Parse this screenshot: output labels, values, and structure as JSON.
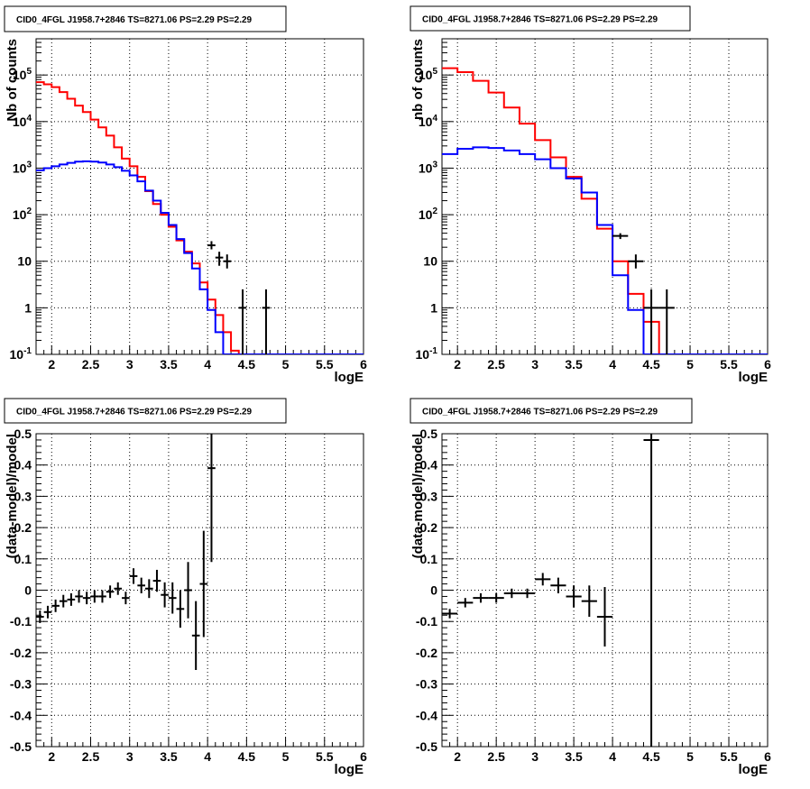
{
  "chart_data": [
    {
      "type": "line",
      "title": "CID0_4FGL J1958.7+2846 TS=8271.06 PS=2.29 PS=2.29",
      "xlabel": "logE",
      "ylabel": "Nb of counts",
      "xlim": [
        1.8,
        6.0
      ],
      "ylim": [
        0.1,
        600000
      ],
      "yscale": "log",
      "grid": true,
      "x_ticks": [
        "2",
        "2.5",
        "3",
        "3.5",
        "4",
        "4.5",
        "5",
        "5.5",
        "6"
      ],
      "y_ticks": [
        "10^-1",
        "1",
        "10",
        "10^2",
        "10^3",
        "10^4",
        "10^5"
      ],
      "bin_edges": [
        1.8,
        1.9,
        2.0,
        2.1,
        2.2,
        2.3,
        2.4,
        2.5,
        2.6,
        2.7,
        2.8,
        2.9,
        3.0,
        3.1,
        3.2,
        3.3,
        3.4,
        3.5,
        3.6,
        3.7,
        3.8,
        3.9,
        4.0,
        4.1,
        4.2,
        4.3,
        4.4,
        4.5,
        4.6,
        4.7,
        4.8,
        4.9,
        5.0,
        5.1,
        5.2,
        5.3,
        5.4,
        5.5,
        5.6,
        5.7,
        5.8,
        5.9,
        6.0
      ],
      "series": [
        {
          "style": "step",
          "color": "#ff0000",
          "values": [
            70000,
            63000,
            55000,
            43000,
            31000,
            22000,
            16000,
            11000,
            7500,
            5000,
            2800,
            1600,
            1100,
            650,
            320,
            170,
            100,
            55,
            28,
            16,
            9,
            3.5,
            1.5,
            0.7,
            0.3,
            0.12,
            0.1,
            0.1,
            0.1,
            0.1,
            0.1,
            0.1,
            0.1,
            0.1,
            0.1,
            0.1,
            0.1,
            0.1,
            0.1,
            0.1,
            0.1,
            0.1
          ]
        },
        {
          "style": "step",
          "color": "#0000ff",
          "values": [
            900,
            1000,
            1100,
            1200,
            1300,
            1380,
            1400,
            1380,
            1320,
            1200,
            1050,
            880,
            700,
            520,
            330,
            200,
            110,
            60,
            30,
            15,
            7,
            2.5,
            0.9,
            0.3,
            0.1,
            0.1,
            0.1,
            0.1,
            0.1,
            0.1,
            0.1,
            0.1,
            0.1,
            0.1,
            0.1,
            0.1,
            0.1,
            0.1,
            0.1,
            0.1,
            0.1,
            0.1
          ]
        }
      ],
      "points": [
        {
          "x": 4.05,
          "y": 22,
          "ylo": 18,
          "yhi": 27,
          "dx": 0.05
        },
        {
          "x": 4.15,
          "y": 12,
          "ylo": 8,
          "yhi": 16,
          "dx": 0.05
        },
        {
          "x": 4.25,
          "y": 10,
          "ylo": 7,
          "yhi": 14,
          "dx": 0.05
        },
        {
          "x": 4.45,
          "y": 1,
          "ylo": 0.1,
          "yhi": 2.5,
          "dx": 0.05
        },
        {
          "x": 4.75,
          "y": 1,
          "ylo": 0.1,
          "yhi": 2.5,
          "dx": 0.05
        }
      ]
    },
    {
      "type": "line",
      "title": "CID0_4FGL J1958.7+2846 TS=8271.06 PS=2.29 PS=2.29",
      "xlabel": "logE",
      "ylabel": "nb of counts",
      "xlim": [
        1.8,
        6.0
      ],
      "ylim": [
        0.1,
        600000
      ],
      "yscale": "log",
      "grid": true,
      "x_ticks": [
        "2",
        "2.5",
        "3",
        "3.5",
        "4",
        "4.5",
        "5",
        "5.5",
        "6"
      ],
      "y_ticks": [
        "10^-1",
        "1",
        "10",
        "10^2",
        "10^3",
        "10^4",
        "10^5"
      ],
      "bin_edges": [
        1.8,
        2.0,
        2.2,
        2.4,
        2.6,
        2.8,
        3.0,
        3.2,
        3.4,
        3.6,
        3.8,
        4.0,
        4.2,
        4.4,
        4.6,
        4.8,
        5.0,
        5.2,
        5.4,
        5.6,
        5.8,
        6.0
      ],
      "series": [
        {
          "style": "step",
          "color": "#ff0000",
          "values": [
            140000,
            115000,
            75000,
            42000,
            20000,
            9000,
            4000,
            1700,
            650,
            220,
            50,
            10,
            2,
            0.5,
            0.1,
            0.1,
            0.1,
            0.1,
            0.1,
            0.1,
            0.1
          ]
        },
        {
          "style": "step",
          "color": "#0000ff",
          "values": [
            2000,
            2600,
            2800,
            2700,
            2400,
            2000,
            1550,
            1000,
            600,
            300,
            60,
            5,
            0.9,
            0.1,
            0.1,
            0.1,
            0.1,
            0.1,
            0.1,
            0.1,
            0.1
          ]
        }
      ],
      "points": [
        {
          "x": 4.1,
          "y": 35,
          "ylo": 30,
          "yhi": 40,
          "dx": 0.1
        },
        {
          "x": 4.3,
          "y": 10,
          "ylo": 7,
          "yhi": 14,
          "dx": 0.1
        },
        {
          "x": 4.5,
          "y": 1,
          "ylo": 0.1,
          "yhi": 2.5,
          "dx": 0.1
        },
        {
          "x": 4.7,
          "y": 1,
          "ylo": 0.1,
          "yhi": 2.5,
          "dx": 0.1
        }
      ]
    },
    {
      "type": "scatter",
      "title": "CID0_4FGL J1958.7+2846 TS=8271.06 PS=2.29 PS=2.29",
      "xlabel": "logE",
      "ylabel": "(data-model)/model",
      "xlim": [
        1.8,
        6.0
      ],
      "ylim": [
        -0.5,
        0.5
      ],
      "grid": true,
      "x_ticks": [
        "2",
        "2.5",
        "3",
        "3.5",
        "4",
        "4.5",
        "5",
        "5.5",
        "6"
      ],
      "y_ticks": [
        "-0.5",
        "-0.4",
        "-0.3",
        "-0.2",
        "-0.1",
        "0",
        "0.1",
        "0.2",
        "0.3",
        "0.4",
        "0.5"
      ],
      "points": [
        {
          "x": 1.85,
          "y": -0.085,
          "err": 0.02,
          "dx": 0.05
        },
        {
          "x": 1.95,
          "y": -0.07,
          "err": 0.02,
          "dx": 0.05
        },
        {
          "x": 2.05,
          "y": -0.05,
          "err": 0.02,
          "dx": 0.05
        },
        {
          "x": 2.15,
          "y": -0.035,
          "err": 0.02,
          "dx": 0.05
        },
        {
          "x": 2.25,
          "y": -0.03,
          "err": 0.02,
          "dx": 0.05
        },
        {
          "x": 2.35,
          "y": -0.02,
          "err": 0.02,
          "dx": 0.05
        },
        {
          "x": 2.45,
          "y": -0.025,
          "err": 0.02,
          "dx": 0.05
        },
        {
          "x": 2.55,
          "y": -0.02,
          "err": 0.02,
          "dx": 0.05
        },
        {
          "x": 2.65,
          "y": -0.02,
          "err": 0.02,
          "dx": 0.05
        },
        {
          "x": 2.75,
          "y": -0.005,
          "err": 0.02,
          "dx": 0.05
        },
        {
          "x": 2.85,
          "y": 0.005,
          "err": 0.02,
          "dx": 0.05
        },
        {
          "x": 2.95,
          "y": -0.025,
          "err": 0.02,
          "dx": 0.05
        },
        {
          "x": 3.05,
          "y": 0.045,
          "err": 0.025,
          "dx": 0.05
        },
        {
          "x": 3.15,
          "y": 0.015,
          "err": 0.025,
          "dx": 0.05
        },
        {
          "x": 3.25,
          "y": 0.005,
          "err": 0.03,
          "dx": 0.05
        },
        {
          "x": 3.35,
          "y": 0.03,
          "err": 0.035,
          "dx": 0.05
        },
        {
          "x": 3.45,
          "y": -0.015,
          "err": 0.04,
          "dx": 0.05
        },
        {
          "x": 3.55,
          "y": -0.025,
          "err": 0.05,
          "dx": 0.05
        },
        {
          "x": 3.65,
          "y": -0.06,
          "err": 0.06,
          "dx": 0.05
        },
        {
          "x": 3.75,
          "y": 0.0,
          "err": 0.09,
          "dx": 0.05
        },
        {
          "x": 3.85,
          "y": -0.145,
          "err": 0.11,
          "dx": 0.05
        },
        {
          "x": 3.95,
          "y": 0.02,
          "err": 0.17,
          "dx": 0.05
        },
        {
          "x": 4.05,
          "y": 0.39,
          "err": 0.3,
          "dx": 0.05
        }
      ]
    },
    {
      "type": "scatter",
      "title": "CID0_4FGL J1958.7+2846 TS=8271.06 PS=2.29 PS=2.29",
      "xlabel": "logE",
      "ylabel": "(data-model)/model",
      "xlim": [
        1.8,
        6.0
      ],
      "ylim": [
        -0.5,
        0.5
      ],
      "grid": true,
      "x_ticks": [
        "2",
        "2.5",
        "3",
        "3.5",
        "4",
        "4.5",
        "5",
        "5.5",
        "6"
      ],
      "y_ticks": [
        "-0.5",
        "-0.4",
        "-0.3",
        "-0.2",
        "-0.1",
        "0",
        "0.1",
        "0.2",
        "0.3",
        "0.4",
        "0.5"
      ],
      "points": [
        {
          "x": 1.9,
          "y": -0.075,
          "err": 0.015,
          "dx": 0.1
        },
        {
          "x": 2.1,
          "y": -0.04,
          "err": 0.015,
          "dx": 0.1
        },
        {
          "x": 2.3,
          "y": -0.025,
          "err": 0.015,
          "dx": 0.1
        },
        {
          "x": 2.5,
          "y": -0.025,
          "err": 0.015,
          "dx": 0.1
        },
        {
          "x": 2.7,
          "y": -0.01,
          "err": 0.015,
          "dx": 0.1
        },
        {
          "x": 2.9,
          "y": -0.01,
          "err": 0.015,
          "dx": 0.1
        },
        {
          "x": 3.1,
          "y": 0.035,
          "err": 0.02,
          "dx": 0.1
        },
        {
          "x": 3.3,
          "y": 0.015,
          "err": 0.025,
          "dx": 0.1
        },
        {
          "x": 3.5,
          "y": -0.02,
          "err": 0.035,
          "dx": 0.1
        },
        {
          "x": 3.7,
          "y": -0.035,
          "err": 0.05,
          "dx": 0.1
        },
        {
          "x": 3.9,
          "y": -0.085,
          "err": 0.095,
          "dx": 0.1
        },
        {
          "x": 4.5,
          "y": 0.48,
          "err": 1.0,
          "dx": 0.1
        }
      ]
    }
  ]
}
